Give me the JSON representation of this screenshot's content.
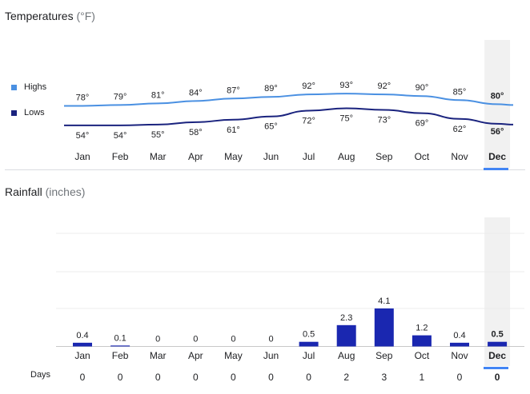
{
  "temperature": {
    "title": "Temperatures",
    "unit": "(°F)",
    "legend": [
      {
        "label": "Highs",
        "color": "#4a90e2"
      },
      {
        "label": "Lows",
        "color": "#1a237e"
      }
    ]
  },
  "rainfall": {
    "title": "Rainfall",
    "unit": "(inches)",
    "days_label": "Days"
  },
  "selected_month": "Dec",
  "colors": {
    "highs": "#4a90e2",
    "lows": "#1a237e",
    "bar": "#1a27b0",
    "accent": "#4285f4",
    "selection_bg": "#f1f1f1"
  },
  "chart_data": [
    {
      "type": "line",
      "title": "Temperatures (°F)",
      "categories": [
        "Jan",
        "Feb",
        "Mar",
        "Apr",
        "May",
        "Jun",
        "Jul",
        "Aug",
        "Sep",
        "Oct",
        "Nov",
        "Dec"
      ],
      "series": [
        {
          "name": "Highs",
          "values": [
            78,
            79,
            81,
            84,
            87,
            89,
            92,
            93,
            92,
            90,
            85,
            80
          ],
          "labels": [
            "78°",
            "79°",
            "81°",
            "84°",
            "87°",
            "89°",
            "92°",
            "93°",
            "92°",
            "90°",
            "85°",
            "80°"
          ]
        },
        {
          "name": "Lows",
          "values": [
            54,
            54,
            55,
            58,
            61,
            65,
            72,
            75,
            73,
            69,
            62,
            56
          ],
          "labels": [
            "54°",
            "54°",
            "55°",
            "58°",
            "61°",
            "65°",
            "72°",
            "75°",
            "73°",
            "69°",
            "62°",
            "56°"
          ]
        }
      ]
    },
    {
      "type": "bar",
      "title": "Rainfall (inches)",
      "categories": [
        "Jan",
        "Feb",
        "Mar",
        "Apr",
        "May",
        "Jun",
        "Jul",
        "Aug",
        "Sep",
        "Oct",
        "Nov",
        "Dec"
      ],
      "values": [
        0.4,
        0.1,
        0,
        0,
        0,
        0,
        0.5,
        2.3,
        4.1,
        1.2,
        0.4,
        0.5
      ],
      "labels": [
        "0.4",
        "0.1",
        "0",
        "0",
        "0",
        "0",
        "0.5",
        "2.3",
        "4.1",
        "1.2",
        "0.4",
        "0.5"
      ],
      "days": [
        0,
        0,
        0,
        0,
        0,
        0,
        0,
        2,
        3,
        1,
        0,
        0
      ],
      "ylim": [
        0,
        5
      ]
    }
  ]
}
